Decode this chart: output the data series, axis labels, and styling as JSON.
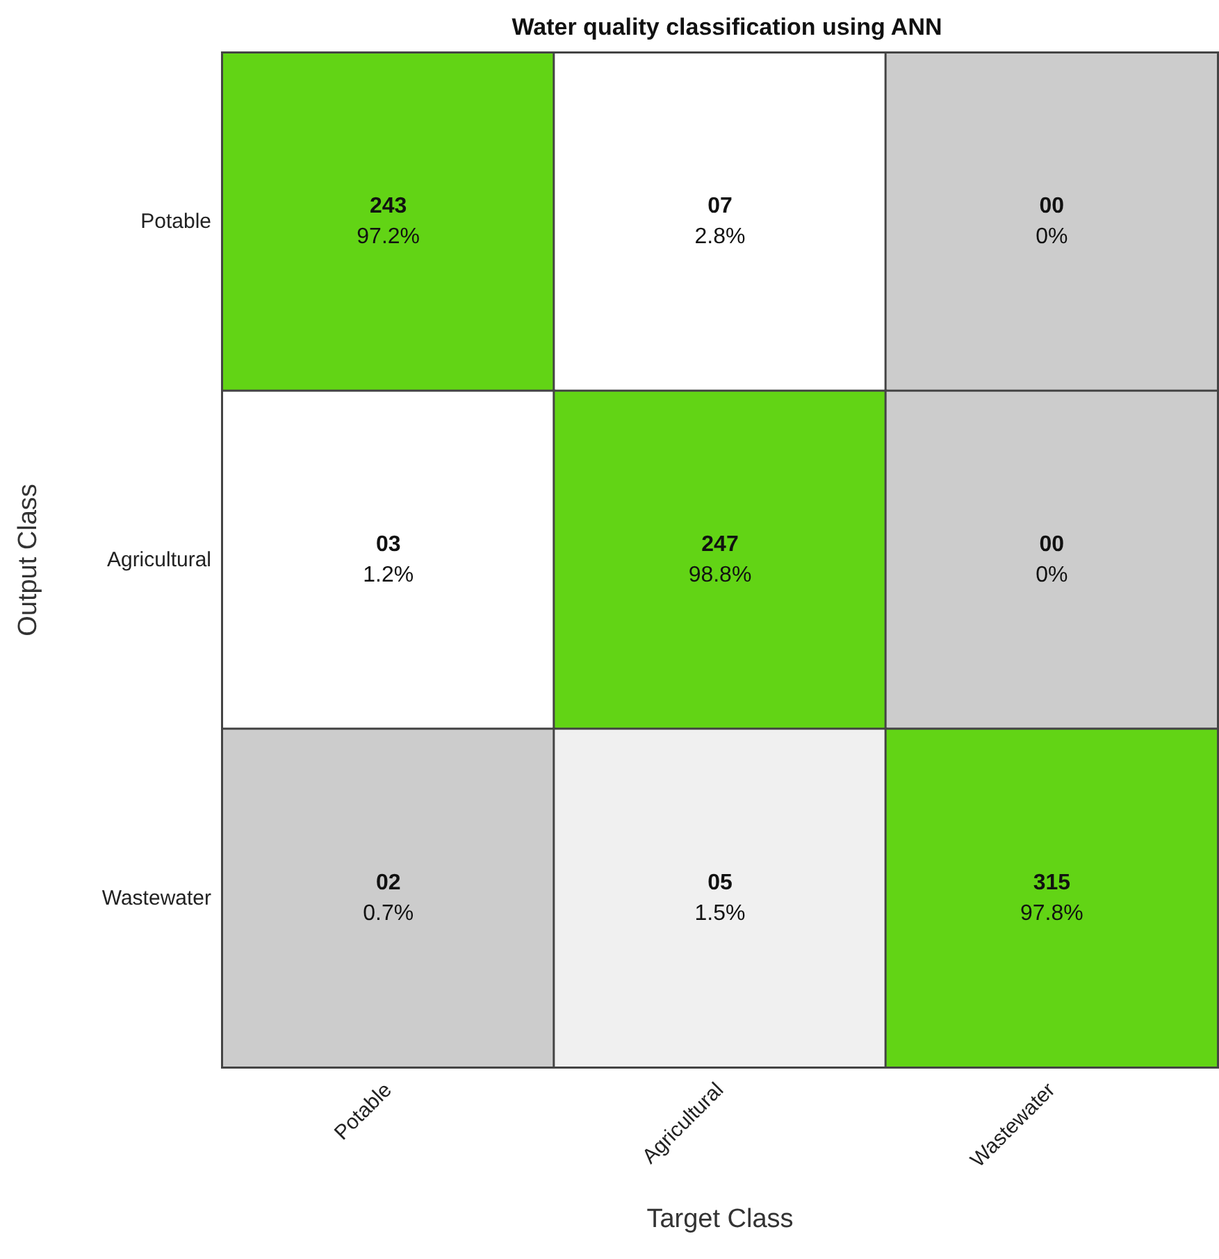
{
  "chart_data": {
    "type": "heatmap",
    "title": "Water quality classification using ANN",
    "xlabel": "Target Class",
    "ylabel": "Output Class",
    "categories": [
      "Potable",
      "Agricultural",
      "Wastewater"
    ],
    "y_categories": [
      "Potable",
      "Agricultural",
      "Wastewater"
    ],
    "cells": [
      [
        243,
        7,
        0
      ],
      [
        3,
        247,
        0
      ],
      [
        2,
        5,
        315
      ]
    ],
    "cell_labels": [
      [
        "243",
        "07",
        "00"
      ],
      [
        "03",
        "247",
        "00"
      ],
      [
        "02",
        "05",
        "315"
      ]
    ],
    "annotations": [
      "97.2%",
      "2.8%",
      "0%",
      "1.2%",
      "98.8%",
      "0%",
      "0.7%",
      "1.5%",
      "97.8%"
    ],
    "colors": [
      [
        "#62d415",
        "#ffffff",
        "#cccccc"
      ],
      [
        "#ffffff",
        "#62d415",
        "#cccccc"
      ],
      [
        "#cccccc",
        "#f0f0f0",
        "#62d415"
      ]
    ]
  }
}
